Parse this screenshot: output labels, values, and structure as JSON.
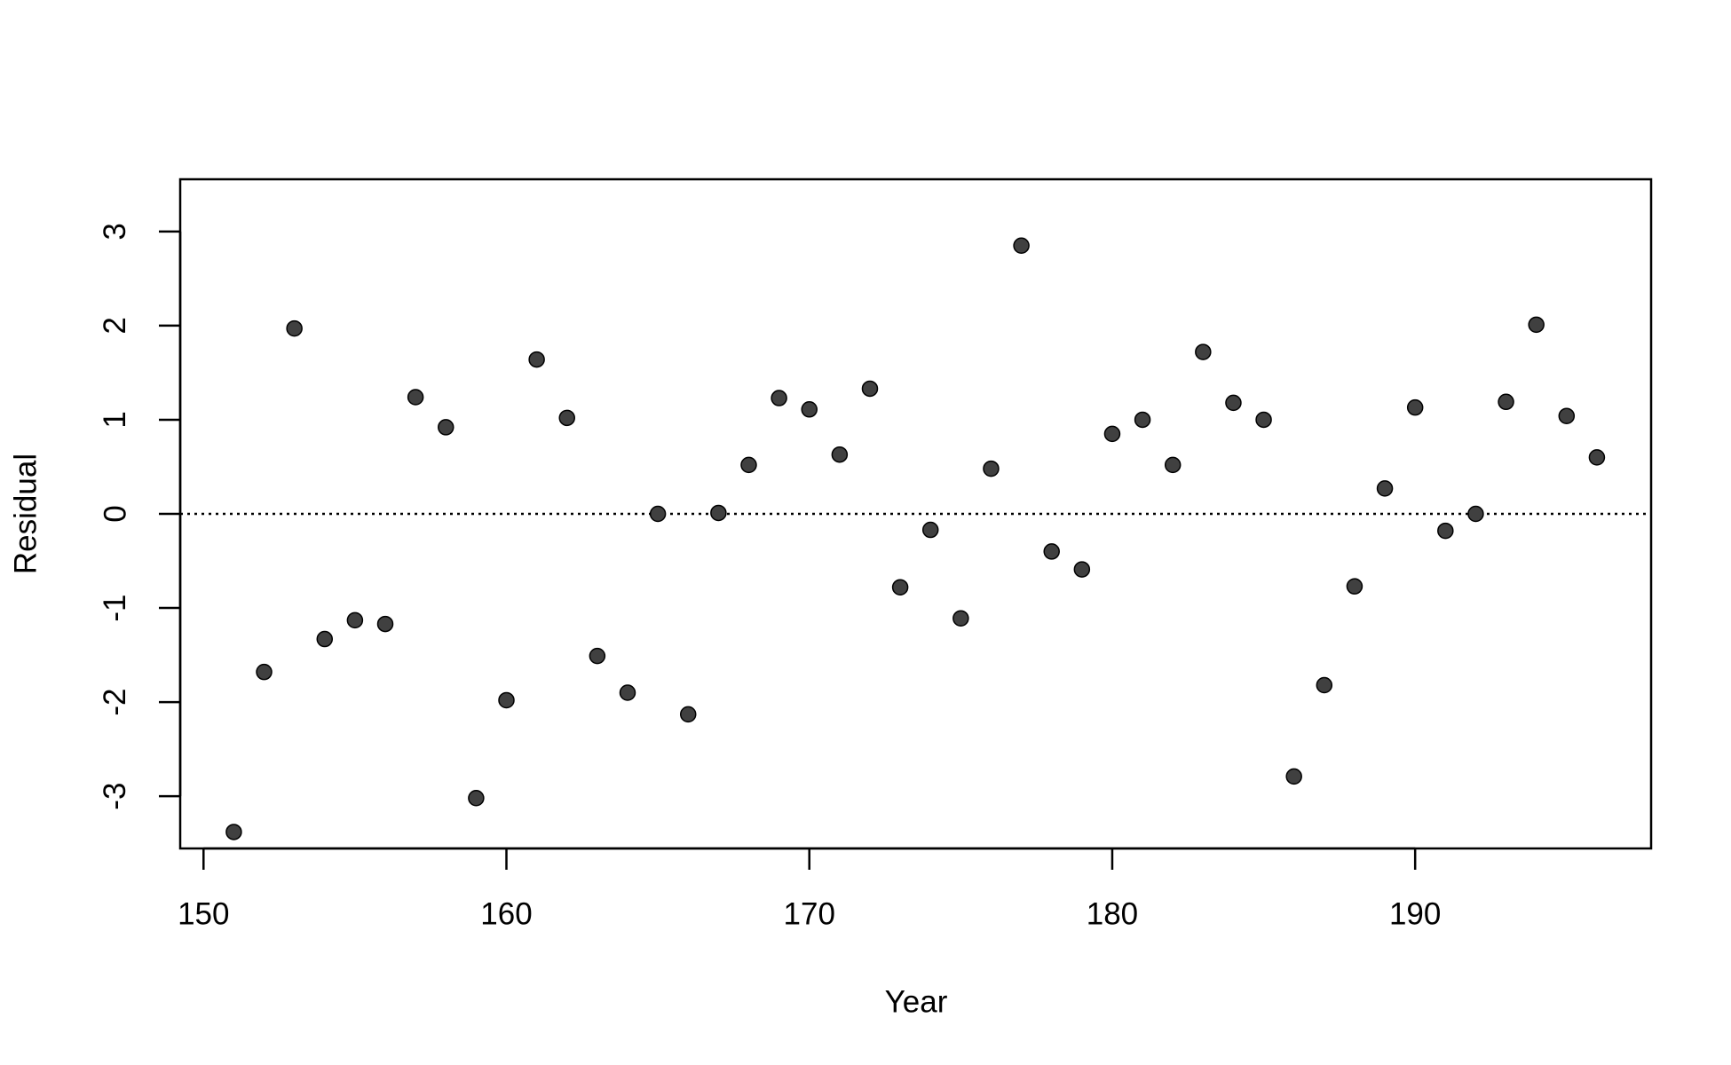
{
  "chart_data": {
    "type": "scatter",
    "xlabel": "Year",
    "ylabel": "Residual",
    "x": [
      151,
      152,
      153,
      154,
      155,
      156,
      157,
      158,
      159,
      160,
      161,
      162,
      163,
      164,
      165,
      166,
      167,
      168,
      169,
      170,
      171,
      172,
      173,
      174,
      175,
      176,
      177,
      178,
      179,
      180,
      181,
      182,
      183,
      184,
      185,
      186,
      187,
      188,
      189,
      190,
      191,
      192,
      193,
      194,
      195,
      196
    ],
    "values": [
      -3.38,
      -1.68,
      1.97,
      -1.33,
      -1.13,
      -1.17,
      1.24,
      0.92,
      -3.02,
      -1.98,
      1.64,
      1.02,
      -1.51,
      -1.9,
      0.0,
      -2.13,
      0.01,
      0.52,
      1.23,
      1.11,
      0.63,
      1.33,
      -0.78,
      -0.17,
      -1.11,
      0.48,
      2.85,
      -0.4,
      -0.59,
      0.85,
      1.0,
      0.52,
      1.72,
      1.18,
      1.0,
      -2.79,
      -1.82,
      -0.77,
      0.27,
      1.13,
      -0.18,
      0.0,
      1.19,
      2.01,
      1.04,
      0.6
    ],
    "color": "#404040",
    "reference_line": 0,
    "xlim": [
      149.23,
      197.79
    ],
    "xticks": [
      150,
      160,
      170,
      180,
      190
    ],
    "ylim": [
      -3.555,
      3.555
    ],
    "yticks": [
      -3,
      -2,
      -1,
      0,
      1,
      2,
      3
    ]
  }
}
